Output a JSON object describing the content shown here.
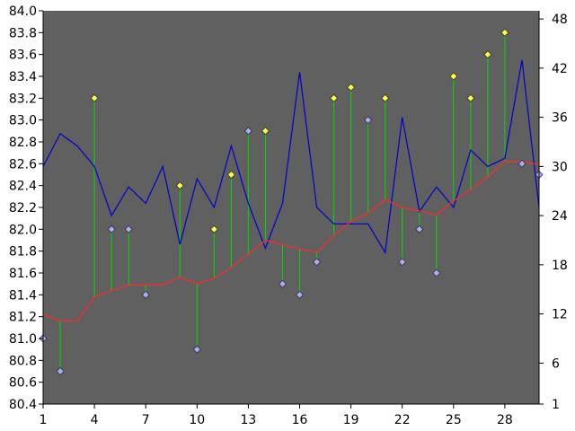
{
  "chart_data": {
    "type": "line",
    "title": "",
    "x": [
      1,
      2,
      3,
      4,
      5,
      6,
      7,
      8,
      9,
      10,
      11,
      12,
      13,
      14,
      15,
      16,
      17,
      18,
      19,
      20,
      21,
      22,
      23,
      24,
      25,
      26,
      27,
      28,
      29,
      30
    ],
    "xlim": [
      1,
      30
    ],
    "x_ticks": [
      "1",
      "4",
      "7",
      "10",
      "13",
      "16",
      "19",
      "22",
      "25",
      "28"
    ],
    "y_left": {
      "lim": [
        80.4,
        84.0
      ],
      "ticks": [
        "84.0",
        "83.8",
        "83.6",
        "83.4",
        "83.2",
        "83.0",
        "82.8",
        "82.6",
        "82.4",
        "82.2",
        "82.0",
        "81.8",
        "81.6",
        "81.4",
        "81.2",
        "81.0",
        "80.8",
        "80.6",
        "80.4"
      ]
    },
    "y_right": {
      "lim": [
        1,
        49
      ],
      "ticks": [
        "48",
        "42",
        "36",
        "30",
        "24",
        "18",
        "12",
        "6",
        "1"
      ]
    },
    "plot_background": "#606060",
    "grid": false,
    "legend": "none",
    "series": [
      {
        "kind": "line",
        "axis": "right",
        "color": "#0000cc",
        "values": [
          30,
          34,
          32.5,
          30,
          24,
          27.5,
          25.5,
          30,
          20.5,
          28.5,
          25,
          32.5,
          25.5,
          20,
          25.5,
          41.5,
          25,
          23,
          23,
          23,
          19.5,
          36,
          24.5,
          27.5,
          25,
          32,
          30,
          31,
          43,
          25
        ]
      },
      {
        "kind": "line",
        "axis": "left",
        "color": "#ff2a2a",
        "values": [
          81.22,
          81.16,
          81.16,
          81.38,
          81.44,
          81.49,
          81.49,
          81.49,
          81.56,
          81.5,
          81.55,
          81.65,
          81.77,
          81.9,
          81.86,
          81.82,
          81.79,
          81.94,
          82.07,
          82.15,
          82.27,
          82.2,
          82.17,
          82.13,
          82.26,
          82.36,
          82.48,
          82.62,
          82.62,
          82.59
        ]
      },
      {
        "kind": "markers",
        "axis": "left",
        "marker_color": "#ffff44",
        "x": [
          4,
          9,
          11,
          12,
          14,
          18,
          19,
          21,
          25,
          26,
          27,
          28
        ],
        "values": [
          83.2,
          82.4,
          82.0,
          82.5,
          82.9,
          83.2,
          83.3,
          83.2,
          83.4,
          83.2,
          83.6,
          83.8
        ]
      },
      {
        "kind": "markers",
        "axis": "left",
        "marker_color": "#aaaaff",
        "x": [
          1,
          2,
          5,
          6,
          7,
          10,
          13,
          15,
          16,
          17,
          20,
          22,
          23,
          24,
          29,
          30
        ],
        "values": [
          81.0,
          80.7,
          82.0,
          82.0,
          81.4,
          80.9,
          82.9,
          81.5,
          81.4,
          81.7,
          83.0,
          81.7,
          82.0,
          81.6,
          82.6,
          82.5
        ]
      }
    ],
    "drop_lines_color": "#00dd00"
  }
}
